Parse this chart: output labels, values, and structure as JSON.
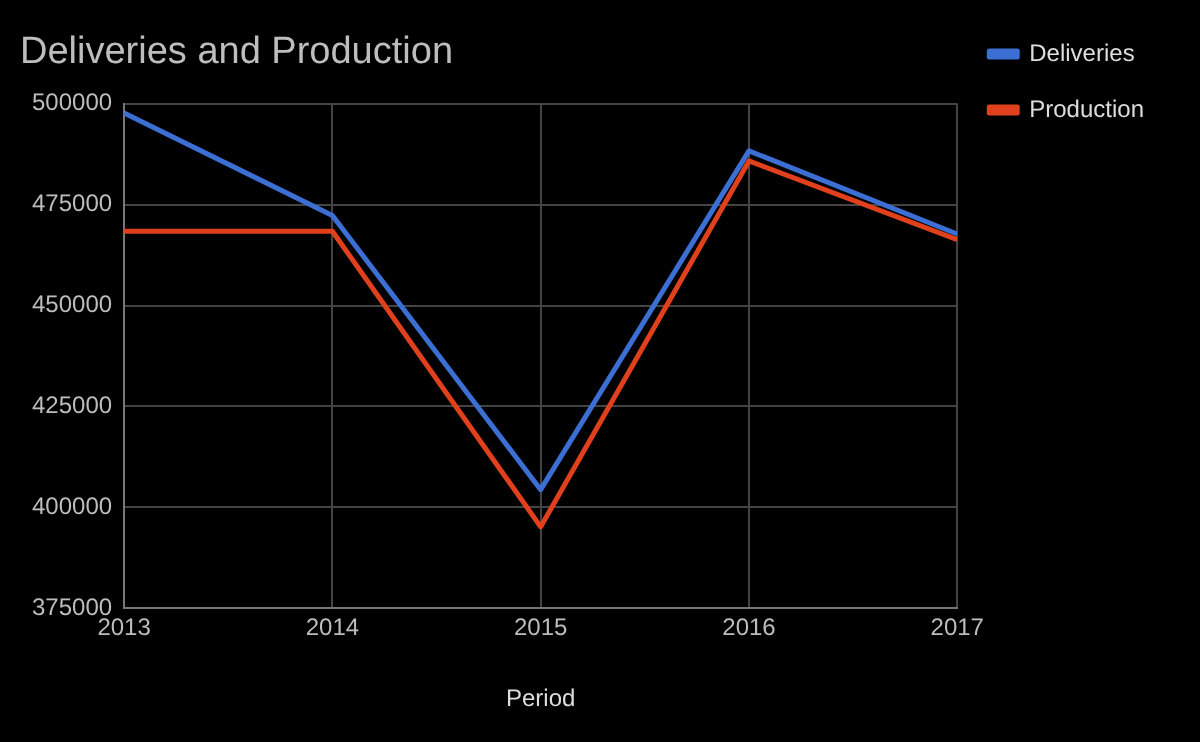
{
  "chart_data": {
    "type": "line",
    "title": "Deliveries and Production",
    "xlabel": "Period",
    "x": [
      2013,
      2014,
      2015,
      2016,
      2017
    ],
    "xlim": [
      2013,
      2017
    ],
    "xticks": [
      2013,
      2014,
      2015,
      2016,
      2017
    ],
    "ylim": [
      375000,
      500000
    ],
    "yticks": [
      375000,
      400000,
      425000,
      450000,
      475000,
      500000
    ],
    "grid": true,
    "legend": "right",
    "marker": "none",
    "series": [
      {
        "name": "Deliveries",
        "color": "#3b6fd4",
        "values": [
          497700,
          472300,
          404400,
          488300,
          467700
        ]
      },
      {
        "name": "Production",
        "color": "#e0401c",
        "values": [
          468400,
          468400,
          395200,
          485800,
          466300
        ]
      }
    ]
  }
}
